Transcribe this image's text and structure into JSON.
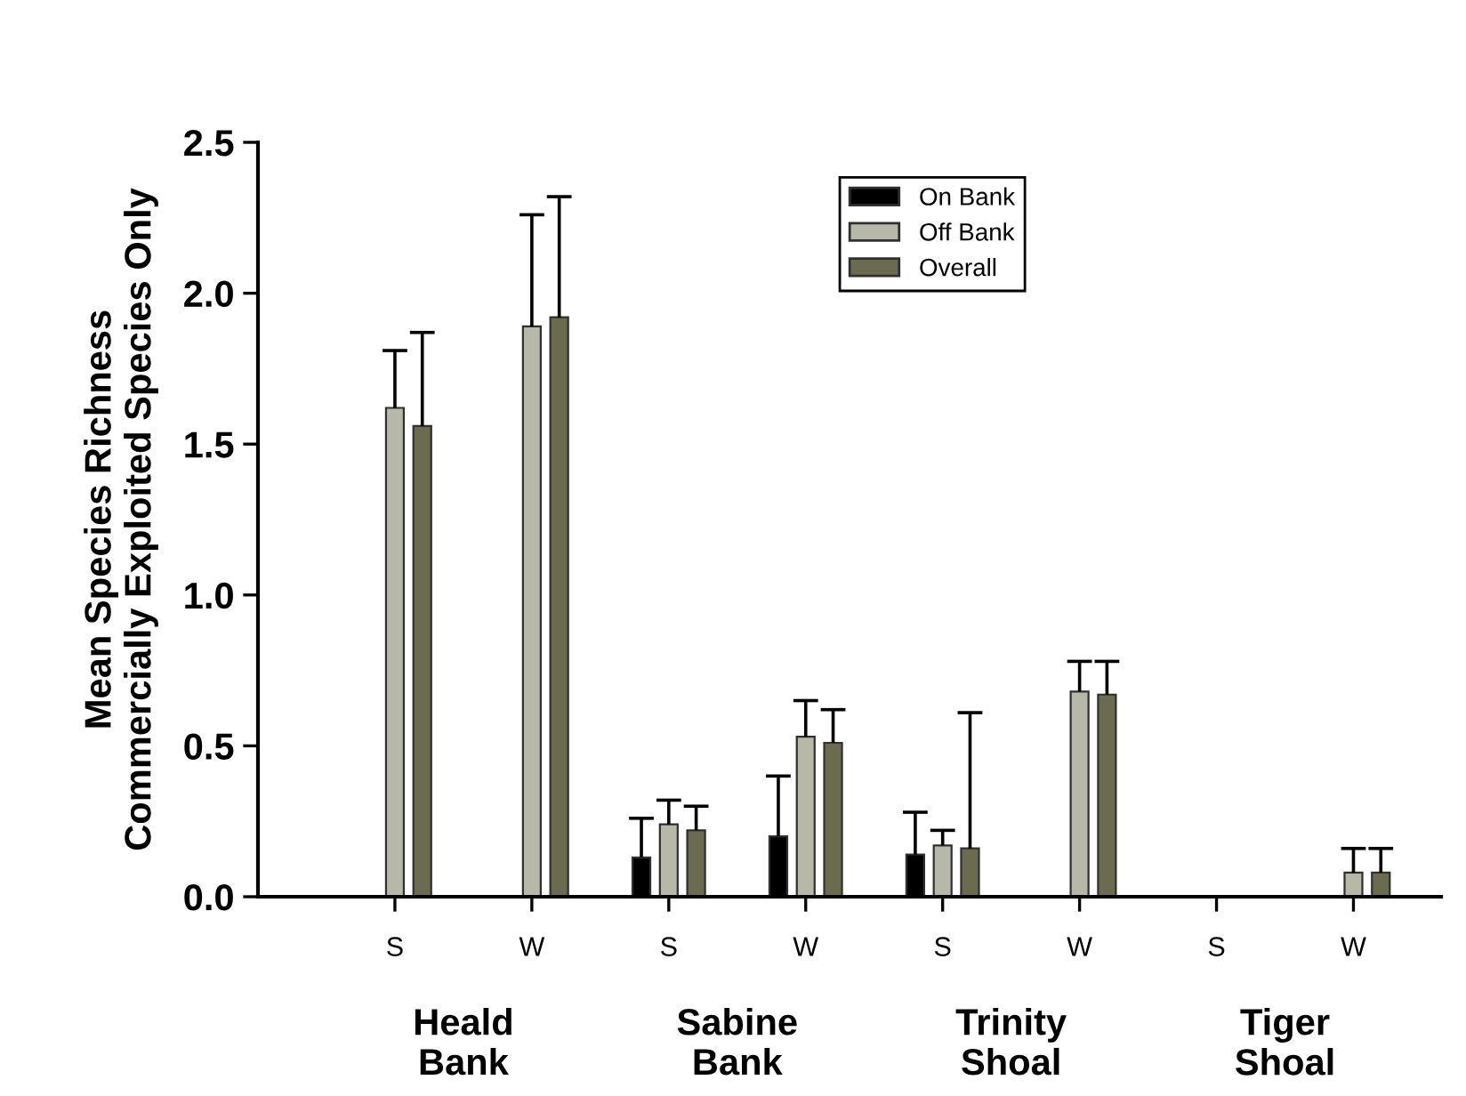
{
  "chart_data": {
    "type": "bar",
    "ylabel": "Mean Species Richness\nCommercially Exploited Species Only",
    "categories": [
      "S",
      "W",
      "S",
      "W",
      "S",
      "W",
      "S",
      "W"
    ],
    "series": [
      {
        "name": "On Bank",
        "color": "#000000",
        "values": [
          null,
          null,
          0.13,
          0.2,
          0.14,
          null,
          null,
          null
        ],
        "errors": [
          null,
          null,
          [
            0.13,
            0.26
          ],
          [
            0.2,
            0.4
          ],
          [
            0.14,
            0.28
          ],
          null,
          null,
          null
        ]
      },
      {
        "name": "Off Bank",
        "color": "#b8b8a8",
        "values": [
          1.62,
          1.89,
          0.24,
          0.53,
          0.17,
          0.68,
          null,
          0.08
        ],
        "errors": [
          [
            1.62,
            1.81
          ],
          [
            1.89,
            2.26
          ],
          [
            0.24,
            0.32
          ],
          [
            0.53,
            0.65
          ],
          [
            0.17,
            0.22
          ],
          [
            0.68,
            0.78
          ],
          null,
          [
            0.08,
            0.16
          ]
        ]
      },
      {
        "name": "Overall",
        "color": "#6b6b50",
        "values": [
          1.56,
          1.92,
          0.22,
          0.51,
          0.16,
          0.67,
          null,
          0.08
        ],
        "errors": [
          [
            1.56,
            1.87
          ],
          [
            1.92,
            2.32
          ],
          [
            0.22,
            0.3
          ],
          [
            0.51,
            0.62
          ],
          [
            0.16,
            0.61
          ],
          [
            0.67,
            0.78
          ],
          null,
          [
            0.08,
            0.16
          ]
        ]
      }
    ],
    "ylim": [
      0,
      2.5
    ],
    "yticks": [
      {
        "value": 0,
        "label": "0.0"
      },
      0.5,
      {
        "value": 1,
        "label": "1.0"
      },
      1.5,
      {
        "value": 2,
        "label": "2.0"
      },
      2.5
    ],
    "annotations": [
      "Heald Bank",
      "Sabine Bank",
      "Trinity Shoal",
      "Tiger Shoal"
    ],
    "grid": false,
    "legend": "top"
  }
}
